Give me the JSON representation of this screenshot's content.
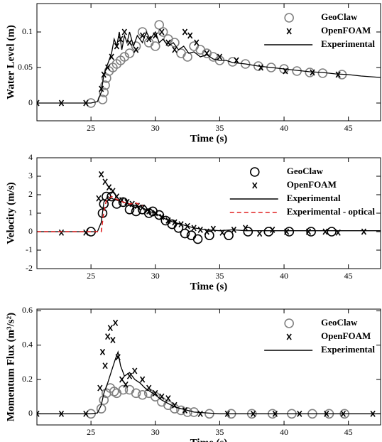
{
  "chart_data": [
    {
      "type": "line",
      "xlabel": "Time (s)",
      "ylabel": "Water Level (m)",
      "xlim": [
        20.8,
        47.5
      ],
      "ylim": [
        -0.025,
        0.14
      ],
      "xticks": [
        25,
        30,
        35,
        40,
        45
      ],
      "yticks": [
        0,
        0.05,
        0.1
      ],
      "legend": "upper right",
      "series": [
        {
          "name": "GeoClaw",
          "marker": "circle",
          "color": "#808080",
          "x": [
            25,
            25.9,
            26,
            26.1,
            26.2,
            26.4,
            26.7,
            27,
            27.3,
            27.6,
            28,
            28.5,
            29,
            29.5,
            30,
            30.3,
            30.6,
            31,
            31.5,
            32,
            32.5,
            33,
            33.5,
            34,
            34.5,
            35,
            36,
            37,
            38,
            39,
            40,
            41,
            42,
            43,
            44.5
          ],
          "values": [
            0,
            0.005,
            0.015,
            0.025,
            0.035,
            0.045,
            0.05,
            0.055,
            0.06,
            0.065,
            0.07,
            0.08,
            0.1,
            0.085,
            0.08,
            0.11,
            0.1,
            0.09,
            0.085,
            0.07,
            0.065,
            0.08,
            0.075,
            0.07,
            0.065,
            0.06,
            0.058,
            0.055,
            0.052,
            0.05,
            0.048,
            0.045,
            0.043,
            0.042,
            0.04
          ]
        },
        {
          "name": "OpenFOAM",
          "marker": "x",
          "color": "#000000",
          "x": [
            20.8,
            22.7,
            24.6,
            25.8,
            26,
            26.3,
            26.6,
            27,
            27.3,
            27.6,
            28,
            28.5,
            29,
            29.5,
            30,
            30.5,
            31,
            31.5,
            32.3,
            32.7,
            33.2,
            34,
            35,
            36.3,
            38.2,
            40.1,
            42.2,
            44.2
          ],
          "values": [
            0,
            0,
            0,
            0.02,
            0.04,
            0.05,
            0.065,
            0.08,
            0.09,
            0.1,
            0.085,
            0.075,
            0.095,
            0.09,
            0.095,
            0.1,
            0.085,
            0.075,
            0.1,
            0.095,
            0.085,
            0.07,
            0.065,
            0.06,
            0.05,
            0.045,
            0.043,
            0.04
          ]
        },
        {
          "name": "Experimental",
          "marker": "line",
          "color": "#000000",
          "x": [
            20.8,
            22,
            23,
            24,
            25,
            25.5,
            25.8,
            26,
            26.2,
            26.4,
            26.6,
            26.8,
            27,
            27.2,
            27.4,
            27.6,
            27.8,
            28,
            28.3,
            28.6,
            29,
            29.3,
            29.6,
            30,
            30.3,
            30.6,
            31,
            31.4,
            31.8,
            32.2,
            32.6,
            33,
            33.5,
            34,
            34.5,
            35,
            35.5,
            36,
            37,
            38,
            39,
            40,
            41,
            42,
            43,
            44,
            45,
            46,
            47.5
          ],
          "values": [
            0,
            0,
            0,
            0,
            0,
            0.002,
            0.015,
            0.04,
            0.05,
            0.06,
            0.07,
            0.09,
            0.08,
            0.1,
            0.075,
            0.095,
            0.085,
            0.1,
            0.08,
            0.095,
            0.085,
            0.1,
            0.09,
            0.1,
            0.085,
            0.09,
            0.08,
            0.085,
            0.075,
            0.08,
            0.07,
            0.072,
            0.065,
            0.068,
            0.062,
            0.06,
            0.06,
            0.057,
            0.055,
            0.052,
            0.05,
            0.048,
            0.046,
            0.044,
            0.043,
            0.041,
            0.04,
            0.038,
            0.036
          ]
        }
      ]
    },
    {
      "type": "line",
      "xlabel": "Time (s)",
      "ylabel": "Velocity (m/s)",
      "xlim": [
        20.8,
        47.5
      ],
      "ylim": [
        -2,
        4
      ],
      "xticks": [
        25,
        30,
        35,
        40,
        45
      ],
      "yticks": [
        -2,
        -1,
        0,
        1,
        2,
        3,
        4
      ],
      "legend": "upper right",
      "series": [
        {
          "name": "GeoClaw",
          "marker": "circle",
          "color": "#000000",
          "x": [
            25,
            25.9,
            26,
            26.2,
            26.6,
            27,
            27.5,
            28,
            28.5,
            29,
            29.5,
            29.8,
            30.3,
            30.8,
            31.3,
            31.8,
            32.3,
            32.8,
            33.3,
            34.2,
            35.7,
            37.2,
            38.8,
            40.4,
            42.1,
            43.7
          ],
          "values": [
            0,
            1,
            1.5,
            1.9,
            1.9,
            1.5,
            1.6,
            1.2,
            1.1,
            1.2,
            1,
            1.1,
            0.9,
            0.6,
            0.4,
            0.2,
            -0.1,
            -0.2,
            -0.4,
            -0.2,
            -0.2,
            0,
            0,
            0,
            0,
            0
          ]
        },
        {
          "name": "OpenFOAM",
          "marker": "x",
          "color": "#000000",
          "x": [
            22.7,
            24.6,
            25.6,
            25.8,
            26.1,
            26.4,
            26.7,
            27,
            27.4,
            27.8,
            28.2,
            28.6,
            29,
            29.5,
            30,
            30.5,
            31,
            31.5,
            32,
            32.5,
            33,
            33.5,
            34,
            34.5,
            35.2,
            36.1,
            37,
            38.1,
            39.1,
            40.2,
            41.9,
            43.2,
            44.2,
            46.2
          ],
          "values": [
            -0.05,
            -0.05,
            1.8,
            3.1,
            2.7,
            2.4,
            2.2,
            1.9,
            1.7,
            1.6,
            1.5,
            1.4,
            1.3,
            1.1,
            1,
            0.8,
            0.6,
            0.5,
            0.4,
            0.3,
            0.2,
            0.1,
            0,
            0.15,
            -0.05,
            0.1,
            0.2,
            -0.1,
            0.1,
            0,
            0,
            0,
            -0.05,
            0
          ]
        },
        {
          "name": "Experimental",
          "marker": "line",
          "color": "#000000",
          "x": [
            20.8,
            24,
            25.5,
            25.8,
            26,
            26.3,
            26.6,
            27,
            27.5,
            28,
            28.5,
            29,
            29.5,
            30,
            30.5,
            31,
            31.5,
            32,
            32.5,
            33,
            33.5,
            34,
            35,
            36,
            37,
            38,
            40,
            42,
            44,
            46,
            47.5
          ],
          "values": [
            0,
            0,
            0,
            0.5,
            1.6,
            1.9,
            1.8,
            1.7,
            1.6,
            1.5,
            1.4,
            1.3,
            1.1,
            1,
            0.8,
            0.6,
            0.5,
            0.4,
            0.3,
            0.2,
            0.15,
            0.1,
            0.05,
            0.1,
            0.05,
            0.05,
            0.05,
            0.05,
            0.05,
            0.05,
            0.05
          ]
        },
        {
          "name": "Experimental - optical",
          "marker": "dashed",
          "color": "#e02020",
          "x": [
            20.8,
            25.8,
            26,
            26.2,
            26.6,
            27,
            27.5,
            28,
            28.5,
            29
          ],
          "values": [
            0,
            0,
            1.1,
            1.7,
            1.9,
            1.75,
            1.6,
            1.5,
            1.55,
            1.4
          ]
        }
      ]
    },
    {
      "type": "line",
      "xlabel": "Time (s)",
      "ylabel": "Momentum Flux (m³/s²)",
      "xlim": [
        20.8,
        47.5
      ],
      "ylim": [
        -0.065,
        0.61
      ],
      "xticks": [
        25,
        30,
        35,
        40,
        45
      ],
      "yticks": [
        0,
        0.2,
        0.4,
        0.6
      ],
      "legend": "upper right",
      "series": [
        {
          "name": "GeoClaw",
          "marker": "circle",
          "color": "#808080",
          "x": [
            25,
            25.8,
            26,
            26.2,
            26.5,
            26.8,
            27,
            27.5,
            28,
            28.5,
            29,
            29.5,
            30,
            30.5,
            31,
            31.5,
            32,
            32.5,
            33,
            34.2,
            35.9,
            37.5,
            39.1,
            40.6,
            42.2,
            43.5,
            44.7
          ],
          "values": [
            0,
            0.03,
            0.08,
            0.12,
            0.15,
            0.13,
            0.12,
            0.14,
            0.14,
            0.12,
            0.11,
            0.12,
            0.1,
            0.07,
            0.05,
            0.03,
            0.02,
            0.01,
            0.01,
            0,
            0,
            0,
            0,
            0,
            0,
            0,
            0
          ]
        },
        {
          "name": "OpenFOAM",
          "marker": "x",
          "color": "#000000",
          "x": [
            20.8,
            22.7,
            24.6,
            25.7,
            25.9,
            26.1,
            26.3,
            26.5,
            26.7,
            26.9,
            27.1,
            27.4,
            27.7,
            28,
            28.4,
            29,
            29.5,
            30,
            30.5,
            31,
            31.5,
            32.3,
            33.5,
            35.6,
            37.6,
            39.3,
            41.2,
            43.3,
            44.6,
            46.9
          ],
          "values": [
            0,
            0,
            0,
            0.15,
            0.36,
            0.28,
            0.45,
            0.5,
            0.43,
            0.53,
            0.33,
            0.2,
            0.17,
            0.22,
            0.25,
            0.2,
            0.15,
            0.12,
            0.1,
            0.09,
            0.05,
            0.02,
            0,
            0,
            0,
            0,
            0,
            0,
            0,
            0
          ]
        },
        {
          "name": "Experimental",
          "marker": "line",
          "color": "#000000",
          "x": [
            20.8,
            25,
            25.5,
            25.8,
            26,
            26.3,
            26.6,
            26.9,
            27.1,
            27.3,
            27.6,
            28,
            28.4,
            28.8,
            29.2,
            29.6,
            30,
            30.5,
            31,
            31.5,
            32,
            33,
            34,
            35,
            40,
            47.5
          ],
          "values": [
            0,
            0,
            0.005,
            0.05,
            0.12,
            0.18,
            0.25,
            0.32,
            0.36,
            0.28,
            0.22,
            0.24,
            0.2,
            0.18,
            0.15,
            0.13,
            0.11,
            0.08,
            0.06,
            0.04,
            0.03,
            0.01,
            0.005,
            0,
            0,
            0
          ]
        }
      ]
    }
  ]
}
